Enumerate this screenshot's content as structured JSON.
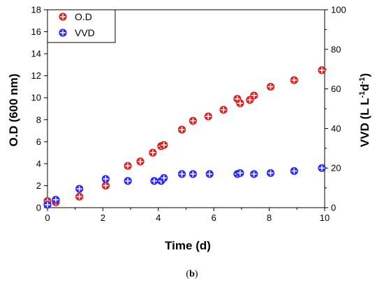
{
  "chart_data": {
    "type": "scatter",
    "xlabel": "Time (d)",
    "ylabel_left": "O.D (600 nm)",
    "ylabel_right_prefix": "VVD (L L",
    "ylabel_right_sup1": "-1",
    "ylabel_right_mid": "d",
    "ylabel_right_sup2": "-1",
    "ylabel_right_suffix": ")",
    "xlim": [
      0,
      10
    ],
    "ylim_left": [
      0,
      18
    ],
    "ylim_right": [
      0,
      100
    ],
    "xticks": [
      "0",
      "2",
      "4",
      "6",
      "8",
      "10"
    ],
    "yticks_left": [
      "0",
      "2",
      "4",
      "6",
      "8",
      "10",
      "12",
      "14",
      "16",
      "18"
    ],
    "yticks_right": [
      "0",
      "20",
      "40",
      "60",
      "80",
      "100"
    ],
    "legend_placement": "top-left",
    "grid": false,
    "series": [
      {
        "name": "O.D",
        "axis": "left",
        "color": "#e02020",
        "points": [
          [
            0.0,
            0.6
          ],
          [
            0.3,
            0.5
          ],
          [
            1.15,
            1.0
          ],
          [
            2.1,
            2.0
          ],
          [
            2.9,
            3.8
          ],
          [
            3.35,
            4.2
          ],
          [
            3.8,
            5.0
          ],
          [
            4.1,
            5.6
          ],
          [
            4.2,
            5.7
          ],
          [
            4.85,
            7.1
          ],
          [
            5.25,
            7.9
          ],
          [
            5.8,
            8.3
          ],
          [
            6.35,
            8.9
          ],
          [
            6.85,
            9.9
          ],
          [
            6.95,
            9.5
          ],
          [
            7.3,
            9.8
          ],
          [
            7.45,
            10.2
          ],
          [
            8.05,
            11.0
          ],
          [
            8.9,
            11.6
          ],
          [
            9.9,
            12.5
          ]
        ]
      },
      {
        "name": "VVD",
        "axis": "right",
        "color": "#2a2aff",
        "points": [
          [
            0.0,
            1.5
          ],
          [
            0.3,
            4.0
          ],
          [
            1.15,
            9.5
          ],
          [
            2.1,
            14.5
          ],
          [
            2.9,
            13.5
          ],
          [
            3.85,
            13.5
          ],
          [
            4.1,
            13.5
          ],
          [
            4.2,
            15.0
          ],
          [
            4.85,
            17.0
          ],
          [
            5.25,
            17.0
          ],
          [
            5.85,
            17.0
          ],
          [
            6.85,
            17.0
          ],
          [
            6.95,
            17.5
          ],
          [
            7.45,
            17.0
          ],
          [
            8.05,
            17.5
          ],
          [
            8.9,
            18.5
          ],
          [
            9.9,
            20.0
          ]
        ]
      }
    ]
  },
  "caption": {
    "open": "(",
    "letter": "b",
    "close": ")"
  }
}
